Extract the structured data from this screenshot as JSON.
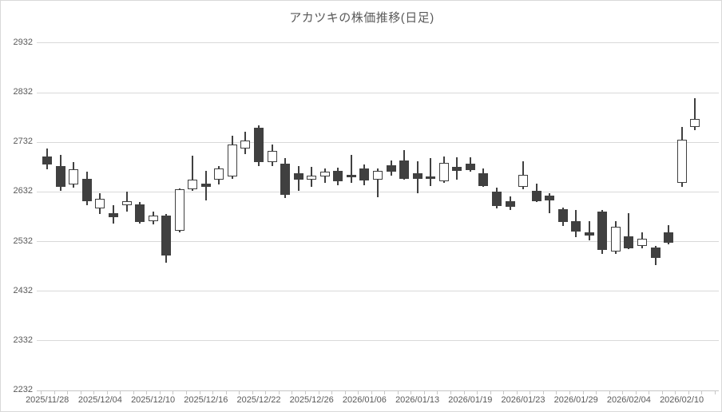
{
  "title": "アカツキの株価推移(日足)",
  "colors": {
    "up_fill": "#ffffff",
    "down_fill": "#404040",
    "outline": "#404040",
    "gridline": "#d9d9d9",
    "axis_text": "#595959"
  },
  "chart_data": {
    "type": "candlestick",
    "title": "アカツキの株価推移(日足)",
    "y_axis": {
      "min": 2232,
      "max": 2932,
      "step": 100,
      "tick_labels": [
        "2232",
        "2332",
        "2432",
        "2532",
        "2632",
        "2732",
        "2832",
        "2932"
      ]
    },
    "x_axis": {
      "label_every": 4,
      "tick_labels": [
        "2025/11/28",
        "2025/12/04",
        "2025/12/10",
        "2025/12/16",
        "2025/12/22",
        "2025/12/26",
        "2026/01/06",
        "2026/01/13",
        "2026/01/19",
        "2026/01/23",
        "2026/01/29",
        "2026/02/04",
        "2026/02/10"
      ]
    },
    "grid": true,
    "legend": "none",
    "series": [
      {
        "date": "2025/11/28",
        "open": 2702,
        "high": 2719,
        "low": 2677,
        "close": 2686
      },
      {
        "date": "2025/12/01",
        "open": 2683,
        "high": 2706,
        "low": 2633,
        "close": 2642
      },
      {
        "date": "2025/12/02",
        "open": 2646,
        "high": 2692,
        "low": 2640,
        "close": 2677
      },
      {
        "date": "2025/12/03",
        "open": 2658,
        "high": 2672,
        "low": 2604,
        "close": 2613
      },
      {
        "date": "2025/12/04",
        "open": 2597,
        "high": 2628,
        "low": 2586,
        "close": 2617
      },
      {
        "date": "2025/12/05",
        "open": 2589,
        "high": 2605,
        "low": 2568,
        "close": 2581
      },
      {
        "date": "2025/12/08",
        "open": 2604,
        "high": 2631,
        "low": 2592,
        "close": 2612
      },
      {
        "date": "2025/12/09",
        "open": 2606,
        "high": 2611,
        "low": 2567,
        "close": 2570
      },
      {
        "date": "2025/12/10",
        "open": 2572,
        "high": 2591,
        "low": 2565,
        "close": 2583
      },
      {
        "date": "2025/12/11",
        "open": 2583,
        "high": 2587,
        "low": 2489,
        "close": 2503
      },
      {
        "date": "2025/12/12",
        "open": 2552,
        "high": 2638,
        "low": 2549,
        "close": 2636
      },
      {
        "date": "2025/12/15",
        "open": 2637,
        "high": 2704,
        "low": 2634,
        "close": 2656
      },
      {
        "date": "2025/12/16",
        "open": 2648,
        "high": 2674,
        "low": 2614,
        "close": 2641
      },
      {
        "date": "2025/12/17",
        "open": 2655,
        "high": 2684,
        "low": 2646,
        "close": 2678
      },
      {
        "date": "2025/12/18",
        "open": 2662,
        "high": 2744,
        "low": 2658,
        "close": 2727
      },
      {
        "date": "2025/12/19",
        "open": 2719,
        "high": 2753,
        "low": 2707,
        "close": 2735
      },
      {
        "date": "2025/12/22",
        "open": 2761,
        "high": 2766,
        "low": 2683,
        "close": 2691
      },
      {
        "date": "2025/12/23",
        "open": 2691,
        "high": 2726,
        "low": 2683,
        "close": 2714
      },
      {
        "date": "2025/12/24",
        "open": 2688,
        "high": 2699,
        "low": 2619,
        "close": 2625
      },
      {
        "date": "2025/12/25",
        "open": 2669,
        "high": 2684,
        "low": 2634,
        "close": 2656
      },
      {
        "date": "2025/12/26",
        "open": 2655,
        "high": 2681,
        "low": 2642,
        "close": 2664
      },
      {
        "date": "2025/12/29",
        "open": 2662,
        "high": 2678,
        "low": 2650,
        "close": 2672
      },
      {
        "date": "2025/12/30",
        "open": 2674,
        "high": 2680,
        "low": 2644,
        "close": 2653
      },
      {
        "date": "2026/01/05",
        "open": 2665,
        "high": 2706,
        "low": 2650,
        "close": 2660
      },
      {
        "date": "2026/01/06",
        "open": 2679,
        "high": 2687,
        "low": 2645,
        "close": 2654
      },
      {
        "date": "2026/01/07",
        "open": 2655,
        "high": 2678,
        "low": 2620,
        "close": 2673
      },
      {
        "date": "2026/01/08",
        "open": 2685,
        "high": 2694,
        "low": 2664,
        "close": 2672
      },
      {
        "date": "2026/01/09",
        "open": 2694,
        "high": 2715,
        "low": 2655,
        "close": 2657
      },
      {
        "date": "2026/01/13",
        "open": 2669,
        "high": 2693,
        "low": 2628,
        "close": 2658
      },
      {
        "date": "2026/01/14",
        "open": 2662,
        "high": 2700,
        "low": 2643,
        "close": 2657
      },
      {
        "date": "2026/01/15",
        "open": 2653,
        "high": 2703,
        "low": 2650,
        "close": 2689
      },
      {
        "date": "2026/01/16",
        "open": 2681,
        "high": 2701,
        "low": 2656,
        "close": 2673
      },
      {
        "date": "2026/01/19",
        "open": 2688,
        "high": 2701,
        "low": 2672,
        "close": 2676
      },
      {
        "date": "2026/01/20",
        "open": 2669,
        "high": 2678,
        "low": 2641,
        "close": 2643
      },
      {
        "date": "2026/01/21",
        "open": 2631,
        "high": 2640,
        "low": 2597,
        "close": 2602
      },
      {
        "date": "2026/01/22",
        "open": 2612,
        "high": 2622,
        "low": 2595,
        "close": 2601
      },
      {
        "date": "2026/01/23",
        "open": 2642,
        "high": 2693,
        "low": 2636,
        "close": 2665
      },
      {
        "date": "2026/01/26",
        "open": 2634,
        "high": 2648,
        "low": 2610,
        "close": 2613
      },
      {
        "date": "2026/01/27",
        "open": 2623,
        "high": 2629,
        "low": 2589,
        "close": 2614
      },
      {
        "date": "2026/01/28",
        "open": 2597,
        "high": 2599,
        "low": 2562,
        "close": 2571
      },
      {
        "date": "2026/01/29",
        "open": 2573,
        "high": 2595,
        "low": 2540,
        "close": 2551
      },
      {
        "date": "2026/01/30",
        "open": 2550,
        "high": 2573,
        "low": 2534,
        "close": 2543
      },
      {
        "date": "2026/02/02",
        "open": 2592,
        "high": 2594,
        "low": 2506,
        "close": 2515
      },
      {
        "date": "2026/02/03",
        "open": 2512,
        "high": 2573,
        "low": 2507,
        "close": 2561
      },
      {
        "date": "2026/02/04",
        "open": 2541,
        "high": 2589,
        "low": 2516,
        "close": 2518
      },
      {
        "date": "2026/02/05",
        "open": 2523,
        "high": 2550,
        "low": 2518,
        "close": 2537
      },
      {
        "date": "2026/02/06",
        "open": 2519,
        "high": 2522,
        "low": 2484,
        "close": 2498
      },
      {
        "date": "2026/02/09",
        "open": 2549,
        "high": 2565,
        "low": 2525,
        "close": 2528
      },
      {
        "date": "2026/02/10",
        "open": 2650,
        "high": 2762,
        "low": 2641,
        "close": 2737
      },
      {
        "date": "2026/02/12",
        "open": 2762,
        "high": 2820,
        "low": 2755,
        "close": 2778
      }
    ]
  }
}
